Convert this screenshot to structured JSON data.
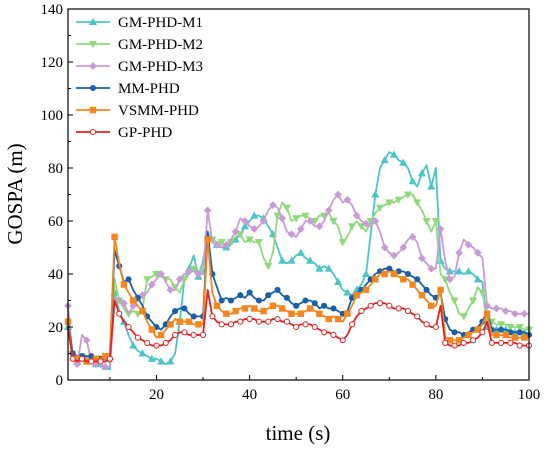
{
  "chart_data": {
    "type": "line",
    "xlabel": "time (s)",
    "ylabel": "GOSPA (m)",
    "xlim": [
      1,
      100
    ],
    "ylim": [
      0,
      140
    ],
    "xticks": [
      20,
      40,
      60,
      80,
      100
    ],
    "yticks": [
      0,
      20,
      40,
      60,
      80,
      100,
      120,
      140
    ],
    "grid": false,
    "legend_position": "top-left",
    "x": [
      1,
      2,
      3,
      4,
      5,
      6,
      7,
      8,
      9,
      10,
      11,
      12,
      13,
      14,
      15,
      16,
      17,
      18,
      19,
      20,
      21,
      22,
      23,
      24,
      25,
      26,
      27,
      28,
      29,
      30,
      31,
      32,
      33,
      34,
      35,
      36,
      37,
      38,
      39,
      40,
      41,
      42,
      43,
      44,
      45,
      46,
      47,
      48,
      49,
      50,
      51,
      52,
      53,
      54,
      55,
      56,
      57,
      58,
      59,
      60,
      61,
      62,
      63,
      64,
      65,
      66,
      67,
      68,
      69,
      70,
      71,
      72,
      73,
      74,
      75,
      76,
      77,
      78,
      79,
      80,
      81,
      82,
      83,
      84,
      85,
      86,
      87,
      88,
      89,
      90,
      91,
      92,
      93,
      94,
      95,
      96,
      97,
      98,
      99,
      100
    ],
    "series": [
      {
        "name": "GM-PHD-M1",
        "color": "#4cc4c8",
        "marker": "triangle-up",
        "values": [
          20,
          9,
          7,
          9,
          8,
          7,
          6,
          5,
          5,
          4,
          33,
          26,
          22,
          17,
          13,
          11,
          10,
          9,
          8,
          8,
          7,
          6,
          7,
          10,
          22,
          38,
          42,
          47,
          39,
          45,
          55,
          52,
          51,
          50,
          50,
          51,
          53,
          55,
          58,
          60,
          62,
          62,
          61,
          58,
          55,
          50,
          45,
          44,
          45,
          47,
          48,
          46,
          45,
          44,
          42,
          43,
          42,
          40,
          37,
          34,
          33,
          32,
          34,
          36,
          40,
          55,
          70,
          80,
          83,
          86,
          85,
          83,
          82,
          80,
          75,
          73,
          78,
          81,
          73,
          80,
          45,
          42,
          41,
          41,
          41,
          40,
          41,
          40,
          38,
          37,
          20,
          19,
          19,
          19,
          19,
          19,
          18,
          18,
          18,
          17
        ]
      },
      {
        "name": "GM-PHD-M2",
        "color": "#8fd97a",
        "marker": "triangle-down",
        "values": [
          25,
          10,
          8,
          9,
          9,
          8,
          8,
          7,
          7,
          7,
          38,
          30,
          27,
          25,
          26,
          25,
          27,
          38,
          39,
          40,
          39,
          38,
          38,
          35,
          33,
          38,
          40,
          42,
          40,
          41,
          56,
          53,
          52,
          52,
          51,
          52,
          54,
          55,
          52,
          53,
          52,
          52,
          46,
          43,
          48,
          62,
          67,
          65,
          60,
          61,
          62,
          62,
          61,
          60,
          62,
          62,
          63,
          60,
          58,
          52,
          54,
          58,
          60,
          58,
          56,
          60,
          63,
          65,
          66,
          67,
          67,
          68,
          69,
          70,
          70,
          67,
          64,
          60,
          56,
          60,
          40,
          38,
          33,
          30,
          25,
          24,
          27,
          30,
          35,
          33,
          22,
          22,
          21,
          21,
          21,
          20,
          20,
          20,
          19,
          19
        ]
      },
      {
        "name": "GM-PHD-M3",
        "color": "#c99bd6",
        "marker": "diamond",
        "values": [
          28,
          8,
          6,
          17,
          15,
          7,
          6,
          6,
          5,
          5,
          30,
          31,
          29,
          25,
          28,
          30,
          32,
          33,
          36,
          38,
          40,
          37,
          34,
          34,
          38,
          40,
          41,
          41,
          40,
          40,
          64,
          52,
          51,
          50,
          51,
          53,
          56,
          61,
          60,
          58,
          57,
          58,
          60,
          64,
          66,
          65,
          61,
          56,
          55,
          54,
          57,
          60,
          60,
          58,
          58,
          60,
          64,
          68,
          70,
          67,
          68,
          66,
          62,
          60,
          59,
          58,
          60,
          56,
          50,
          48,
          47,
          48,
          50,
          53,
          54,
          52,
          46,
          44,
          42,
          42,
          57,
          45,
          38,
          39,
          48,
          53,
          51,
          50,
          48,
          46,
          28,
          27,
          27,
          27,
          26,
          26,
          25,
          25,
          25,
          25
        ]
      },
      {
        "name": "MM-PHD",
        "color": "#1a5fa8",
        "marker": "circle",
        "values": [
          23,
          10,
          9,
          9,
          9,
          9,
          8,
          8,
          8,
          8,
          49,
          43,
          37,
          38,
          34,
          31,
          28,
          24,
          22,
          20,
          19,
          21,
          24,
          26,
          27,
          27,
          25,
          24,
          24,
          24,
          56,
          40,
          35,
          30,
          31,
          30,
          31,
          32,
          31,
          33,
          31,
          30,
          30,
          32,
          33,
          34,
          32,
          31,
          29,
          28,
          29,
          30,
          30,
          29,
          27,
          28,
          27,
          27,
          26,
          25,
          26,
          31,
          33,
          34,
          36,
          38,
          40,
          41,
          42,
          42,
          41,
          41,
          41,
          40,
          39,
          38,
          36,
          34,
          32,
          31,
          33,
          23,
          19,
          18,
          18,
          17,
          18,
          19,
          20,
          22,
          26,
          19,
          19,
          19,
          19,
          18,
          18,
          18,
          18,
          17
        ]
      },
      {
        "name": "VSMM-PHD",
        "color": "#f5861f",
        "marker": "square",
        "values": [
          22,
          8,
          8,
          8,
          7,
          7,
          8,
          8,
          9,
          10,
          54,
          44,
          36,
          33,
          30,
          28,
          26,
          22,
          19,
          16,
          17,
          19,
          21,
          23,
          22,
          22,
          22,
          21,
          21,
          21,
          53,
          33,
          28,
          26,
          25,
          25,
          26,
          27,
          27,
          28,
          27,
          26,
          26,
          27,
          28,
          28,
          27,
          26,
          25,
          25,
          25,
          26,
          27,
          26,
          25,
          24,
          23,
          24,
          23,
          22,
          25,
          28,
          32,
          33,
          34,
          36,
          38,
          40,
          40,
          41,
          40,
          39,
          38,
          38,
          36,
          34,
          32,
          30,
          28,
          28,
          34,
          16,
          15,
          15,
          15,
          16,
          17,
          18,
          19,
          21,
          25,
          17,
          17,
          17,
          17,
          16,
          16,
          16,
          16,
          16
        ]
      },
      {
        "name": "GP-PHD",
        "color": "#e02323",
        "marker": "circle-open",
        "values": [
          20,
          8,
          7,
          8,
          7,
          7,
          7,
          7,
          7,
          8,
          30,
          25,
          22,
          20,
          18,
          16,
          15,
          14,
          13,
          13,
          13,
          14,
          15,
          17,
          18,
          18,
          17,
          17,
          17,
          17,
          34,
          24,
          22,
          21,
          21,
          21,
          22,
          22,
          23,
          23,
          23,
          22,
          22,
          22,
          23,
          23,
          22,
          22,
          21,
          20,
          21,
          21,
          21,
          20,
          19,
          18,
          18,
          17,
          16,
          15,
          17,
          21,
          24,
          26,
          27,
          28,
          29,
          29,
          29,
          28,
          27,
          27,
          27,
          26,
          25,
          24,
          22,
          21,
          20,
          20,
          28,
          14,
          13,
          13,
          13,
          14,
          14,
          15,
          16,
          18,
          22,
          14,
          14,
          14,
          14,
          14,
          14,
          13,
          13,
          13
        ]
      }
    ]
  }
}
